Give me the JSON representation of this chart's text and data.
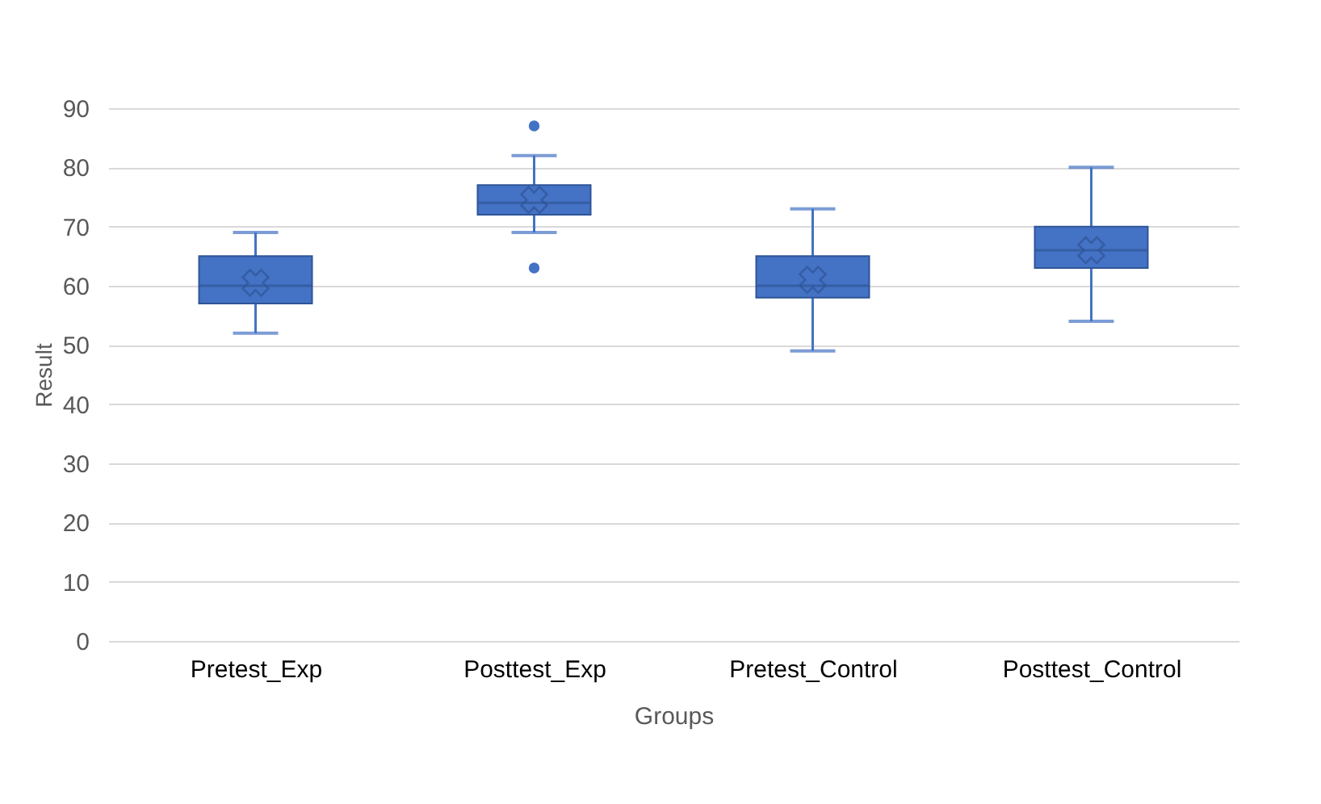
{
  "chart_data": {
    "type": "box",
    "xlabel": "Groups",
    "ylabel": "Result",
    "categories": [
      "Pretest_Exp",
      "Posttest_Exp",
      "Pretest_Control",
      "Posttest_Control"
    ],
    "series": [
      {
        "color": "#4472c4",
        "boxes": [
          {
            "low": 52,
            "q1": 57,
            "median": 60,
            "q3": 65,
            "high": 69,
            "mean": 60.5
          },
          {
            "low": 69,
            "q1": 72,
            "median": 74,
            "q3": 77,
            "high": 82,
            "mean": 74.5,
            "outliers": [
              87,
              63
            ]
          },
          {
            "low": 49,
            "q1": 58,
            "median": 60,
            "q3": 65,
            "high": 73,
            "mean": 61
          },
          {
            "low": 54,
            "q1": 63,
            "median": 66,
            "q3": 70,
            "high": 80,
            "mean": 66
          }
        ]
      }
    ],
    "ylim": [
      0,
      90
    ],
    "yticks": [
      0,
      10,
      20,
      30,
      40,
      50,
      60,
      70,
      80,
      90
    ],
    "grid": "y"
  }
}
